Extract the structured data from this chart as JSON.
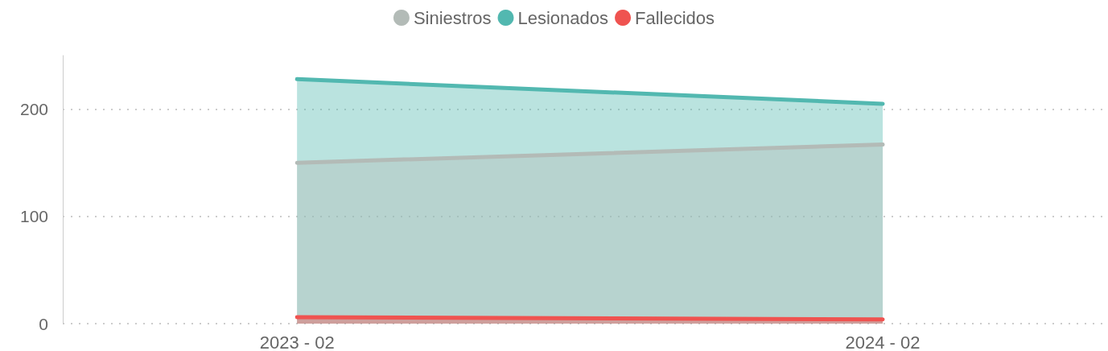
{
  "chart_data": {
    "type": "area",
    "categories": [
      "2023 - 02",
      "2024 - 02"
    ],
    "series": [
      {
        "name": "Siniestros",
        "color": "#b3bbb7",
        "values": [
          150,
          167
        ]
      },
      {
        "name": "Lesionados",
        "color": "#52b8b0",
        "values": [
          228,
          205
        ]
      },
      {
        "name": "Fallecidos",
        "color": "#ef5350",
        "values": [
          6,
          4
        ]
      }
    ],
    "ylim": [
      0,
      250
    ],
    "yticks": [
      0,
      100,
      200
    ],
    "grid": "y",
    "legend": "top",
    "marker": "none",
    "line_style": "solid"
  }
}
